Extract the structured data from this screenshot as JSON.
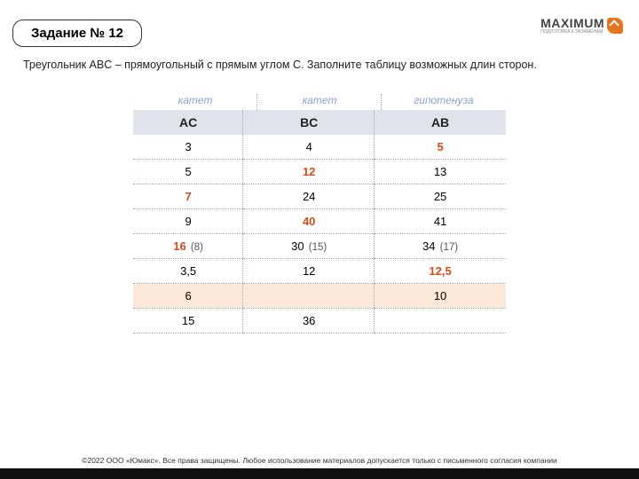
{
  "title": "Задание № 12",
  "logo": {
    "text": "MAXIMUM",
    "sub": "ПОДГОТОВКА К ЭКЗАМЕНАМ"
  },
  "prompt": "Треугольник ABC – прямоугольный с прямым углом C. Заполните таблицу возможных длин сторон.",
  "table": {
    "colLabels": [
      "катет",
      "катет",
      "гипотенуза"
    ],
    "headers": [
      "AC",
      "BC",
      "AB"
    ],
    "rows": [
      {
        "cells": [
          {
            "v": "3"
          },
          {
            "v": "4"
          },
          {
            "v": "5",
            "ans": true
          }
        ]
      },
      {
        "cells": [
          {
            "v": "5"
          },
          {
            "v": "12",
            "ans": true
          },
          {
            "v": "13"
          }
        ]
      },
      {
        "cells": [
          {
            "v": "7",
            "ans": true
          },
          {
            "v": "24"
          },
          {
            "v": "25"
          }
        ]
      },
      {
        "cells": [
          {
            "v": "9"
          },
          {
            "v": "40",
            "ans": true
          },
          {
            "v": "41"
          }
        ]
      },
      {
        "cells": [
          {
            "v": "16",
            "ans": true,
            "note": "(8)"
          },
          {
            "v": "30",
            "note": "(15)"
          },
          {
            "v": "34",
            "note": "(17)"
          }
        ]
      },
      {
        "cells": [
          {
            "v": "3,5"
          },
          {
            "v": "12"
          },
          {
            "v": "12,5",
            "ans": true
          }
        ]
      },
      {
        "hl": true,
        "cells": [
          {
            "v": "6"
          },
          {
            "v": ""
          },
          {
            "v": "10"
          }
        ]
      },
      {
        "cells": [
          {
            "v": "15"
          },
          {
            "v": "36"
          },
          {
            "v": ""
          }
        ]
      }
    ]
  },
  "footer": "©2022 ООО «Юмакс». Все права защищены. Любое использование материалов допускается только с письменного согласия компании"
}
